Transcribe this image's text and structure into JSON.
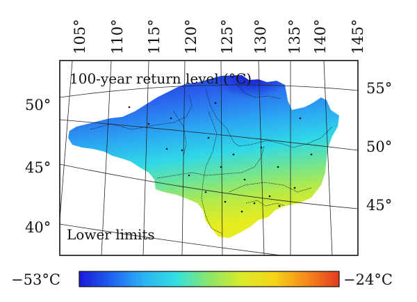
{
  "map": {
    "title": "100-year return level (°C)",
    "subtitle": "Lower limits",
    "top_lon_labels": [
      "105°",
      "110°",
      "115°",
      "120°",
      "125°",
      "130°",
      "135°",
      "140°",
      "145°"
    ],
    "left_lat_labels": [
      "50°",
      "45°",
      "40°"
    ],
    "right_lat_labels": [
      "55°",
      "50°",
      "45°"
    ]
  },
  "colorbar": {
    "min_label": "−53°C",
    "max_label": "−24°C",
    "stops": [
      "#1a1ad6",
      "#1f63f0",
      "#2bb4f5",
      "#35e0e0",
      "#8be66a",
      "#d8ea2a",
      "#f6d416",
      "#f48a1b",
      "#e33a1e"
    ]
  },
  "colors": {
    "frame": "#111111",
    "grid": "#222222",
    "boundary": "#1a1a1a"
  }
}
